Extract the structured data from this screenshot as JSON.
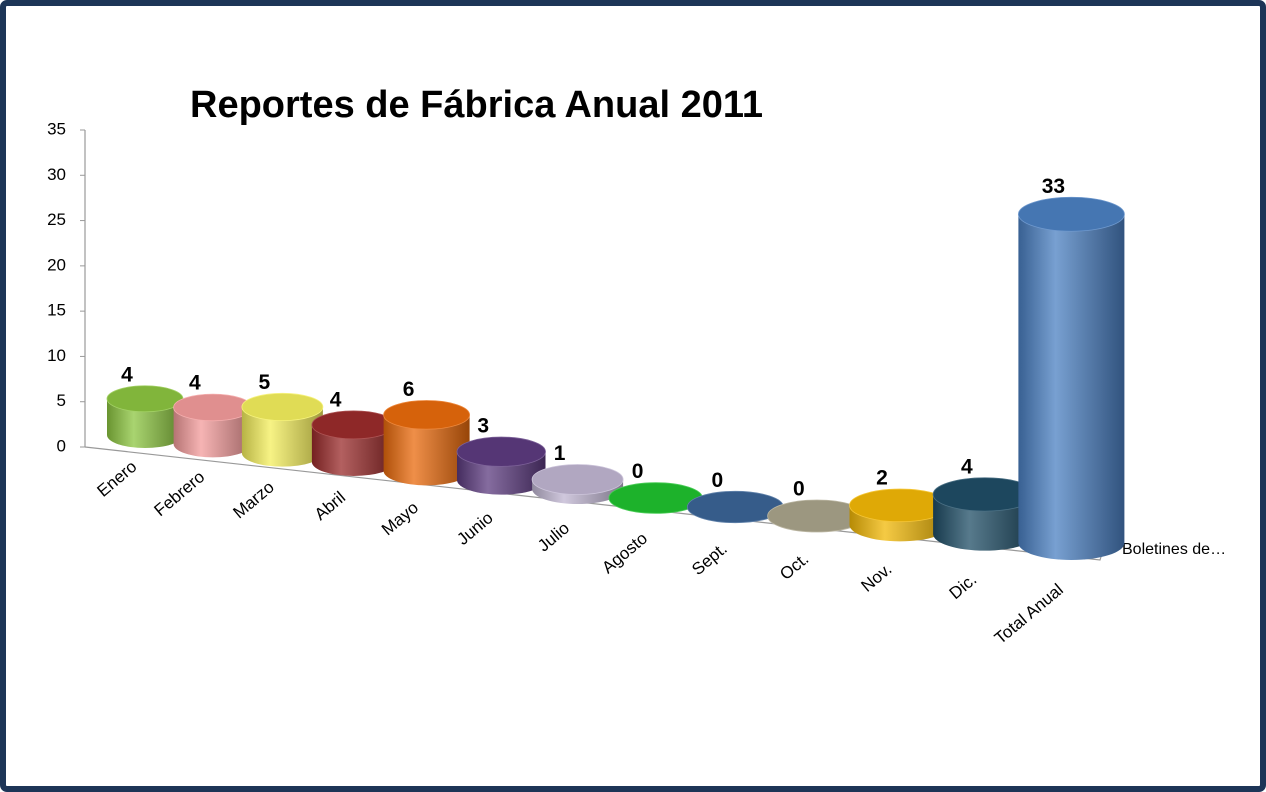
{
  "chart_data": {
    "type": "cylinder3d",
    "title": "Reportes de Fábrica Anual 2011",
    "categories": [
      "Enero",
      "Febrero",
      "Marzo",
      "Abril",
      "Mayo",
      "Junio",
      "Julio",
      "Agosto",
      "Sept.",
      "Oct.",
      "Nov.",
      "Dic.",
      "Total Anual"
    ],
    "series": [
      {
        "name": "Boletines de…",
        "values": [
          4,
          4,
          5,
          4,
          6,
          3,
          1,
          0,
          0,
          0,
          2,
          4,
          33
        ]
      }
    ],
    "colors": [
      "#8cc540",
      "#f39b9b",
      "#f4ef5c",
      "#9a2b2b",
      "#e96a0c",
      "#5c3b7f",
      "#c0b6d2",
      "#1fc22f",
      "#3b6496",
      "#aaa48b",
      "#f2b806",
      "#1f4d66",
      "#4b80c2"
    ],
    "ylim": [
      0,
      35
    ],
    "yticks": [
      0,
      5,
      10,
      15,
      20,
      25,
      30,
      35
    ]
  }
}
